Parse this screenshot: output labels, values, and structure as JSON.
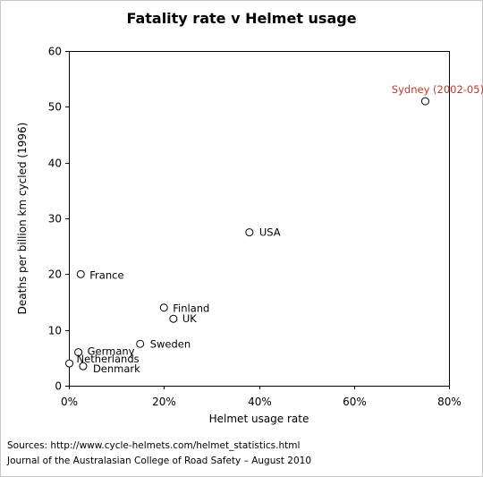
{
  "chart_data": {
    "type": "scatter",
    "title": "Fatality rate v Helmet usage",
    "xlabel": "Helmet usage rate",
    "ylabel": "Deaths per billion km cycled (1996)",
    "xlim": [
      0,
      0.8
    ],
    "ylim": [
      0,
      60
    ],
    "x_ticks": [
      0,
      0.2,
      0.4,
      0.6,
      0.8
    ],
    "x_tick_labels": [
      "0%",
      "20%",
      "40%",
      "60%",
      "80%"
    ],
    "y_ticks": [
      0,
      10,
      20,
      30,
      40,
      50,
      60
    ],
    "y_tick_labels": [
      "0",
      "10",
      "20",
      "30",
      "40",
      "50",
      "60"
    ],
    "grid": false,
    "legend": "none",
    "points": [
      {
        "label": "Sydney (2002-05)",
        "x": 0.75,
        "y": 51,
        "highlight": true
      },
      {
        "label": "USA",
        "x": 0.38,
        "y": 27.5
      },
      {
        "label": "France",
        "x": 0.025,
        "y": 20
      },
      {
        "label": "Finland",
        "x": 0.2,
        "y": 14
      },
      {
        "label": "UK",
        "x": 0.22,
        "y": 12
      },
      {
        "label": "Sweden",
        "x": 0.15,
        "y": 7.5
      },
      {
        "label": "Germany",
        "x": 0.02,
        "y": 6
      },
      {
        "label": "Netherlands",
        "x": 0.001,
        "y": 4
      },
      {
        "label": "Denmark",
        "x": 0.03,
        "y": 3.5
      }
    ],
    "colors": {
      "marker_stroke": "#000000",
      "marker_fill": "#ffffff",
      "highlight_label": "#c0392b"
    }
  },
  "sources": {
    "line1": "Sources: http://www.cycle-helmets.com/helmet_statistics.html",
    "line2": "Journal of the Australasian College of Road Safety – August 2010"
  }
}
